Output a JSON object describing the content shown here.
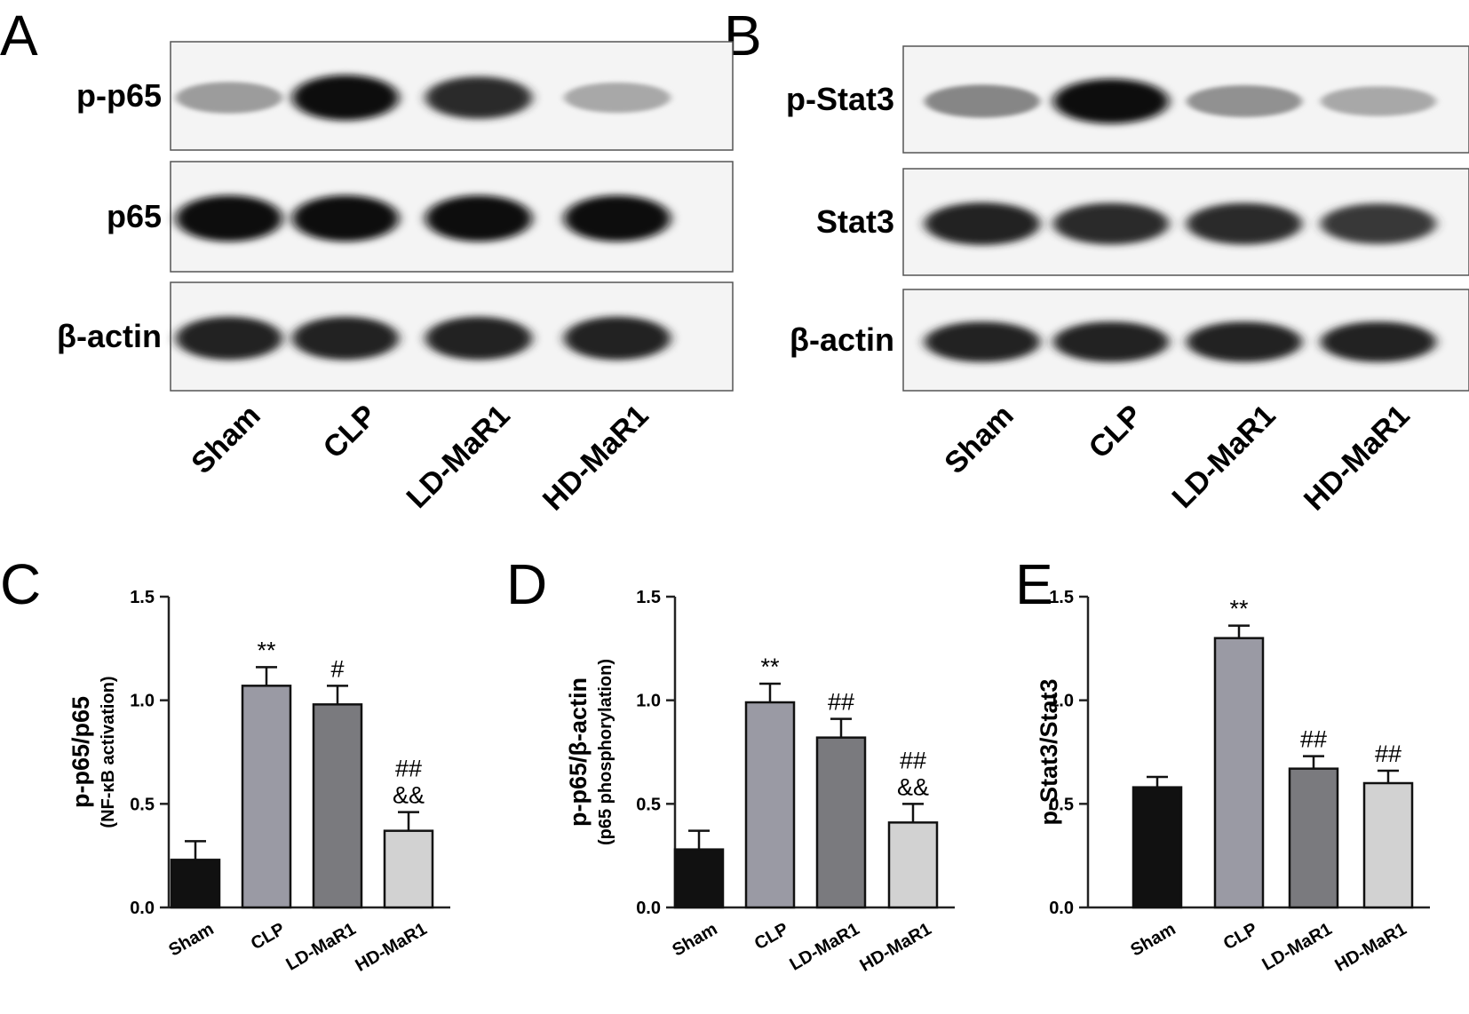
{
  "panels": {
    "A": {
      "letter": "A",
      "blot_rows": [
        {
          "label": "p-p65",
          "intensity": [
            0.35,
            1.0,
            0.85,
            0.3
          ]
        },
        {
          "label": "p65",
          "intensity": [
            1.0,
            1.0,
            1.0,
            1.0
          ]
        },
        {
          "label": "β-actin",
          "intensity": [
            0.9,
            0.9,
            0.9,
            0.9
          ]
        }
      ],
      "lanes": [
        "Sham",
        "CLP",
        "LD-MaR1",
        "HD-MaR1"
      ]
    },
    "B": {
      "letter": "B",
      "blot_rows": [
        {
          "label": "p-Stat3",
          "intensity": [
            0.45,
            1.0,
            0.4,
            0.3
          ]
        },
        {
          "label": "Stat3",
          "intensity": [
            0.9,
            0.85,
            0.85,
            0.8
          ]
        },
        {
          "label": "β-actin",
          "intensity": [
            0.9,
            0.9,
            0.9,
            0.9
          ]
        }
      ],
      "lanes": [
        "Sham",
        "CLP",
        "LD-MaR1",
        "HD-MaR1"
      ]
    },
    "C": {
      "letter": "C"
    },
    "D": {
      "letter": "D"
    },
    "E": {
      "letter": "E"
    }
  },
  "colors": {
    "bars": [
      "#111111",
      "#9a9aa4",
      "#7a7a7e",
      "#d2d2d2"
    ],
    "axis": "#222222"
  },
  "chart_data": [
    {
      "panel": "C",
      "type": "bar",
      "categories": [
        "Sham",
        "CLP",
        "LD-MaR1",
        "HD-MaR1"
      ],
      "values": [
        0.23,
        1.07,
        0.98,
        0.37
      ],
      "errors": [
        0.09,
        0.09,
        0.09,
        0.09
      ],
      "significance": [
        "",
        "**",
        "#",
        "##\n&&"
      ],
      "ylabel": "p-p65/p65",
      "ylabel_sub": "(NF-κB activation)",
      "ylim": [
        0,
        1.5
      ],
      "yticks": [
        "0.0",
        "0.5",
        "1.0",
        "1.5"
      ]
    },
    {
      "panel": "D",
      "type": "bar",
      "categories": [
        "Sham",
        "CLP",
        "LD-MaR1",
        "HD-MaR1"
      ],
      "values": [
        0.28,
        0.99,
        0.82,
        0.41
      ],
      "errors": [
        0.09,
        0.09,
        0.09,
        0.09
      ],
      "significance": [
        "",
        "**",
        "##",
        "##\n&&"
      ],
      "ylabel": "p-p65/β-actin",
      "ylabel_sub": "(p65 phosphorylation)",
      "ylim": [
        0,
        1.5
      ],
      "yticks": [
        "0.0",
        "0.5",
        "1.0",
        "1.5"
      ]
    },
    {
      "panel": "E",
      "type": "bar",
      "categories": [
        "Sham",
        "CLP",
        "LD-MaR1",
        "HD-MaR1"
      ],
      "values": [
        0.58,
        1.3,
        0.67,
        0.6
      ],
      "errors": [
        0.05,
        0.06,
        0.06,
        0.06
      ],
      "significance": [
        "",
        "**",
        "##",
        "##"
      ],
      "ylabel": "p-Stat3/Stat3",
      "ylabel_sub": "",
      "ylim": [
        0,
        1.5
      ],
      "yticks": [
        "0.0",
        "0.5",
        "1.0",
        "1.5"
      ]
    }
  ]
}
